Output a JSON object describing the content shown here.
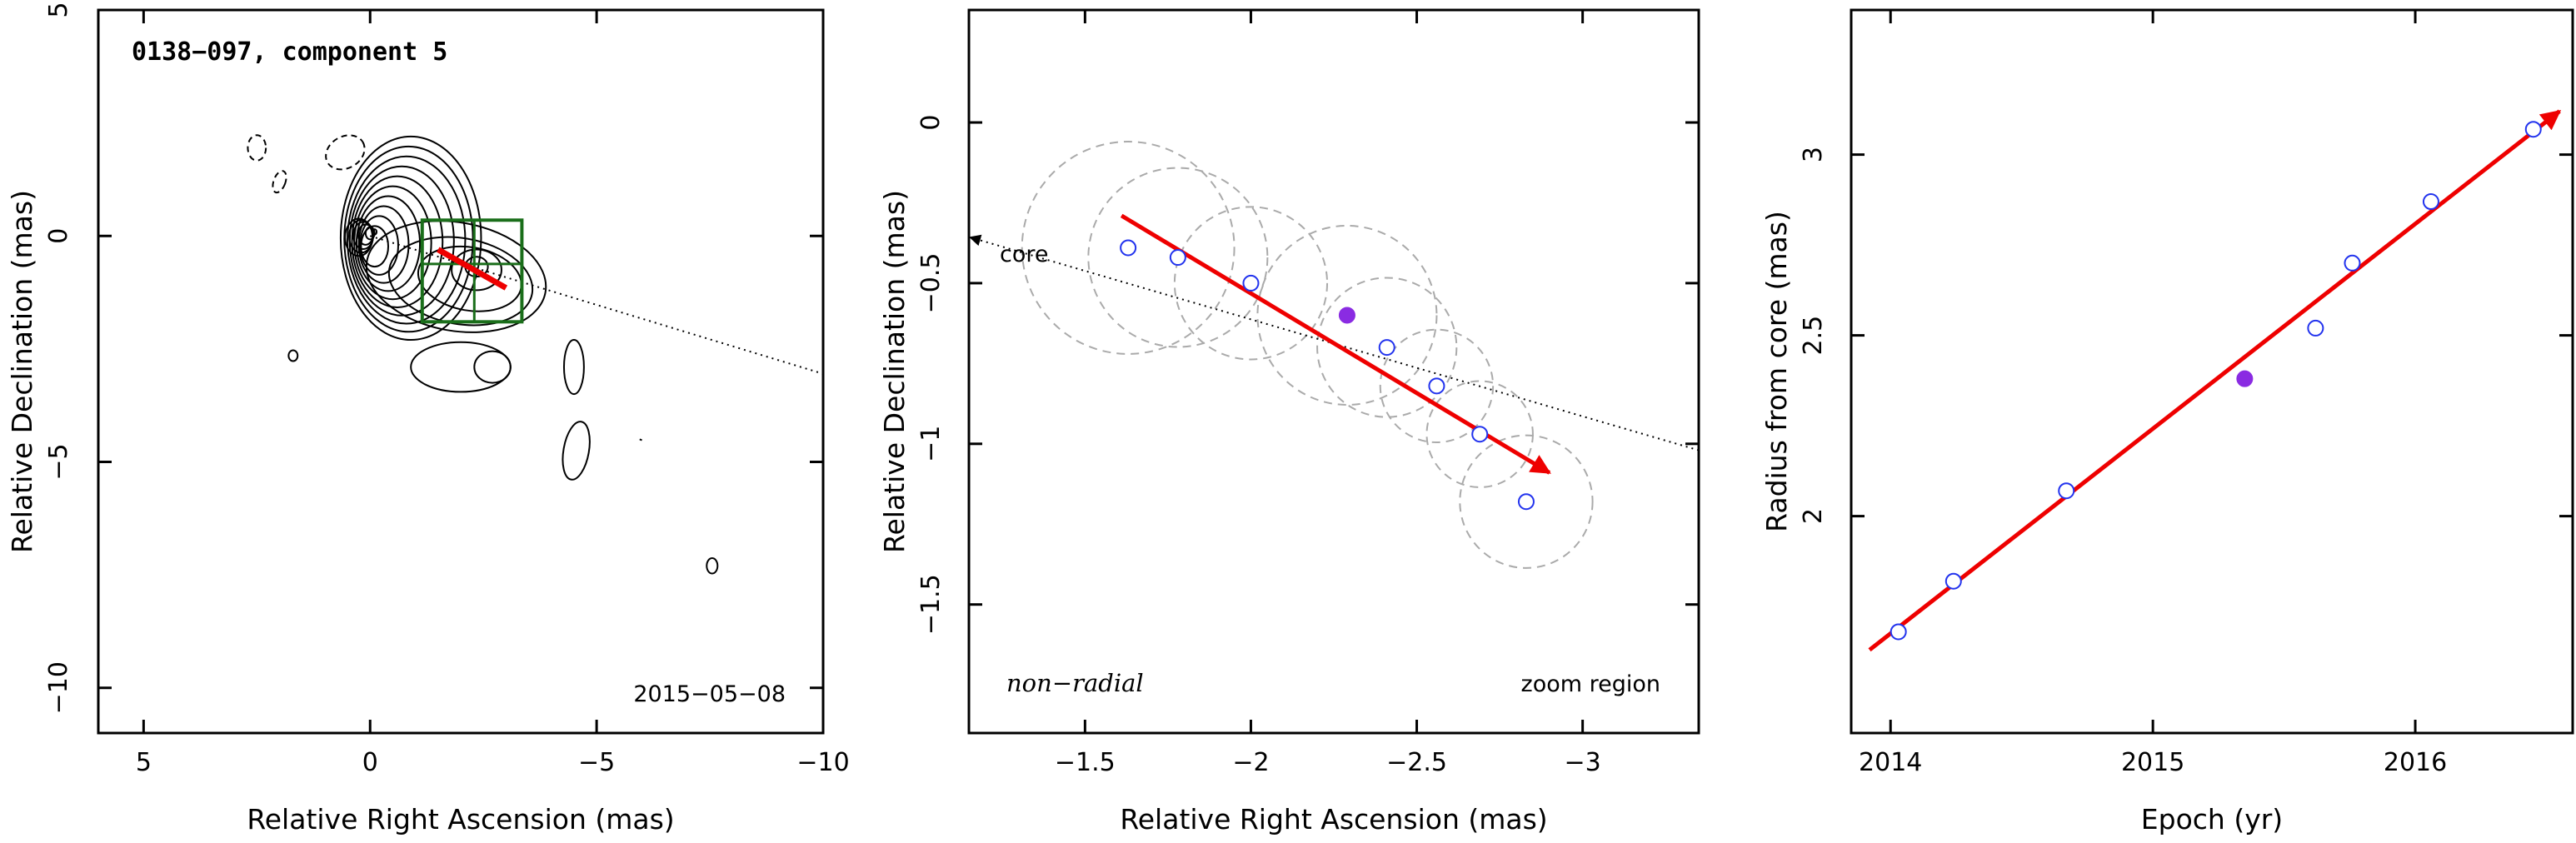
{
  "colors": {
    "arrow": "#ee0000",
    "zoom_box": "#1a6e1a",
    "open_marker": "#2233ee",
    "filled_marker": "#8a2be2",
    "circles": "#aaaaaa",
    "contours": "#000000"
  },
  "chart_data": [
    {
      "type": "contour",
      "title": "0138−097, component 5",
      "date_label": "2015−05−08",
      "xlabel": "Relative Right Ascension (mas)",
      "ylabel": "Relative Declination (mas)",
      "xlim": [
        6,
        -10
      ],
      "ylim": [
        -11,
        5
      ],
      "xticks": [
        5,
        0,
        -5,
        -10
      ],
      "xtick_labels": [
        "5",
        "0",
        "−5",
        "−10"
      ],
      "yticks": [
        5,
        0,
        -5,
        -10
      ],
      "ytick_labels": [
        "5",
        "0",
        "−5",
        "−10"
      ],
      "core": [
        0,
        0
      ],
      "jet_axis": {
        "from": [
          0,
          0
        ],
        "to": [
          -10,
          -3.05
        ]
      },
      "zoom_box": {
        "x": [
          -1.15,
          -3.35
        ],
        "y": [
          0.35,
          -1.9
        ]
      },
      "component_position": [
        -2.3,
        -0.62
      ],
      "motion_arrow": {
        "from": [
          -1.5,
          -0.3
        ],
        "to": [
          -3.0,
          -1.15
        ]
      }
    },
    {
      "type": "scatter",
      "xlabel": "Relative Right Ascension (mas)",
      "ylabel": "Relative Declination (mas)",
      "xlim": [
        -1.15,
        -3.35
      ],
      "ylim": [
        -1.9,
        0.35
      ],
      "xticks": [
        -1.5,
        -2,
        -2.5,
        -3
      ],
      "xtick_labels": [
        "−1.5",
        "−2",
        "−2.5",
        "−3"
      ],
      "yticks": [
        0,
        -0.5,
        -1,
        -1.5
      ],
      "ytick_labels": [
        "0",
        "−0.5",
        "−1",
        "−1.5"
      ],
      "core_label": "core",
      "label_left": "non−radial",
      "label_right": "zoom region",
      "core_line": {
        "from": [
          -1.15,
          -0.35
        ],
        "to": [
          -3.35,
          -1.02
        ]
      },
      "points": [
        {
          "x": -1.63,
          "y": -0.39,
          "filled": false
        },
        {
          "x": -1.78,
          "y": -0.42,
          "filled": false
        },
        {
          "x": -2.0,
          "y": -0.5,
          "filled": false
        },
        {
          "x": -2.29,
          "y": -0.6,
          "filled": true
        },
        {
          "x": -2.41,
          "y": -0.7,
          "filled": false
        },
        {
          "x": -2.56,
          "y": -0.82,
          "filled": false
        },
        {
          "x": -2.69,
          "y": -0.97,
          "filled": false
        },
        {
          "x": -2.83,
          "y": -1.18,
          "filled": false
        }
      ],
      "component_sizes": [
        {
          "x": -1.63,
          "y": -0.39,
          "r": 0.32
        },
        {
          "x": -1.78,
          "y": -0.42,
          "r": 0.27
        },
        {
          "x": -2.0,
          "y": -0.5,
          "r": 0.23
        },
        {
          "x": -2.29,
          "y": -0.6,
          "r": 0.27
        },
        {
          "x": -2.41,
          "y": -0.7,
          "r": 0.21
        },
        {
          "x": -2.56,
          "y": -0.82,
          "r": 0.17
        },
        {
          "x": -2.69,
          "y": -0.97,
          "r": 0.16
        },
        {
          "x": -2.83,
          "y": -1.18,
          "r": 0.2
        }
      ],
      "motion_arrow": {
        "from": [
          -1.61,
          -0.29
        ],
        "to": [
          -2.9,
          -1.09
        ]
      }
    },
    {
      "type": "scatter",
      "xlabel": "Epoch (yr)",
      "ylabel": "Radius from core (mas)",
      "xlim": [
        2013.85,
        2016.6
      ],
      "ylim": [
        1.4,
        3.4
      ],
      "xticks": [
        2014,
        2015,
        2016
      ],
      "xtick_labels": [
        "2014",
        "2015",
        "2016"
      ],
      "yticks": [
        2,
        2.5,
        3
      ],
      "ytick_labels": [
        "2",
        "2.5",
        "3"
      ],
      "points": [
        {
          "x": 2014.03,
          "y": 1.68,
          "filled": false
        },
        {
          "x": 2014.24,
          "y": 1.82,
          "filled": false
        },
        {
          "x": 2014.67,
          "y": 2.07,
          "filled": false
        },
        {
          "x": 2015.35,
          "y": 2.38,
          "filled": true
        },
        {
          "x": 2015.62,
          "y": 2.52,
          "filled": false
        },
        {
          "x": 2015.76,
          "y": 2.7,
          "filled": false
        },
        {
          "x": 2016.06,
          "y": 2.87,
          "filled": false
        },
        {
          "x": 2016.45,
          "y": 3.07,
          "filled": false
        }
      ],
      "fit_arrow": {
        "from": [
          2013.92,
          1.63
        ],
        "to": [
          2016.55,
          3.12
        ]
      }
    }
  ]
}
